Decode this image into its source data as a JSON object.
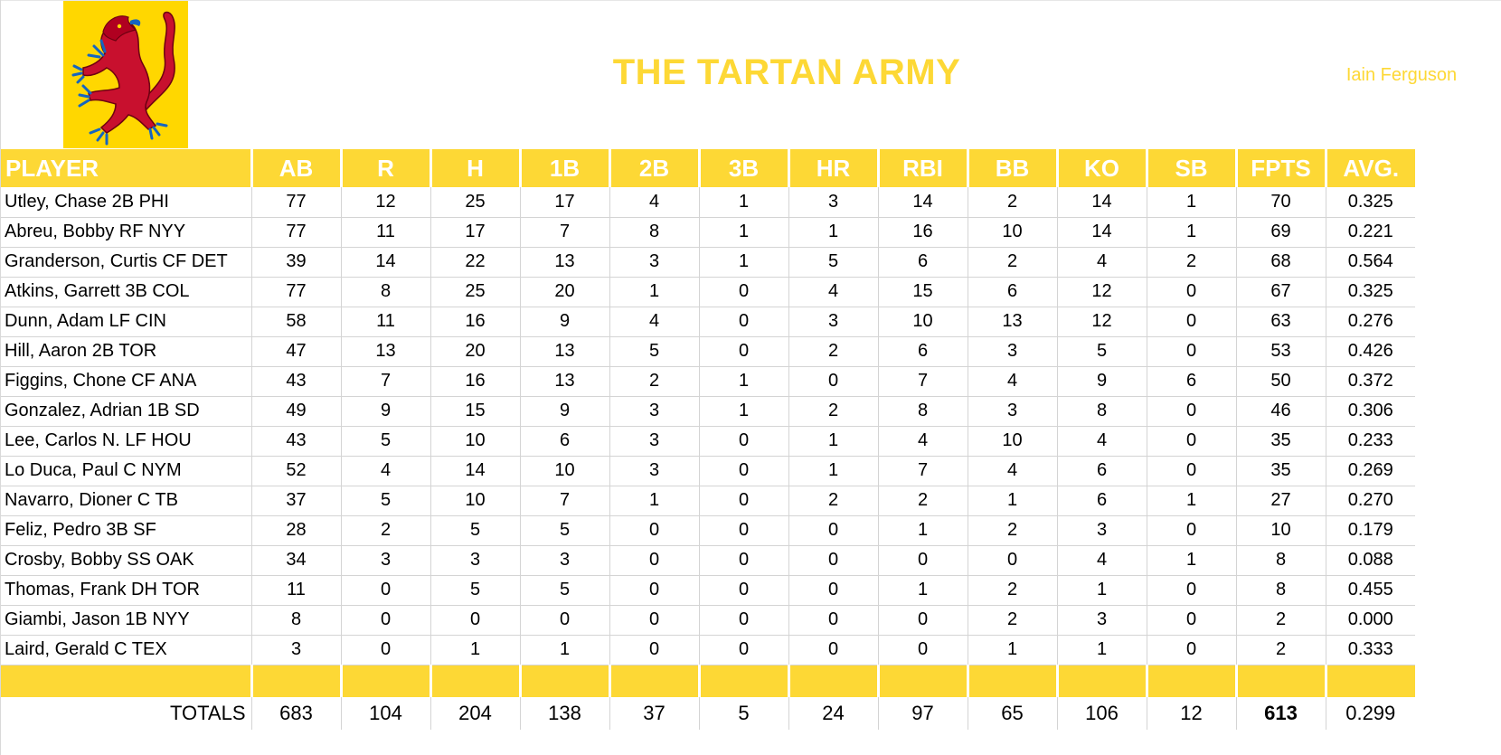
{
  "header": {
    "title": "THE TARTAN ARMY",
    "owner": "Iain Ferguson",
    "logo_icon": "lion-rampant-icon"
  },
  "colors": {
    "accent": "#fdd835",
    "lion": "#c8102e",
    "lion_claws": "#1565c0"
  },
  "table": {
    "columns": [
      "PLAYER",
      "AB",
      "R",
      "H",
      "1B",
      "2B",
      "3B",
      "HR",
      "RBI",
      "BB",
      "KO",
      "SB",
      "FPTS",
      "AVG."
    ],
    "rows": [
      [
        "Utley, Chase 2B PHI",
        "77",
        "12",
        "25",
        "17",
        "4",
        "1",
        "3",
        "14",
        "2",
        "14",
        "1",
        "70",
        "0.325"
      ],
      [
        "Abreu, Bobby RF NYY",
        "77",
        "11",
        "17",
        "7",
        "8",
        "1",
        "1",
        "16",
        "10",
        "14",
        "1",
        "69",
        "0.221"
      ],
      [
        "Granderson, Curtis CF DET",
        "39",
        "14",
        "22",
        "13",
        "3",
        "1",
        "5",
        "6",
        "2",
        "4",
        "2",
        "68",
        "0.564"
      ],
      [
        "Atkins, Garrett 3B COL",
        "77",
        "8",
        "25",
        "20",
        "1",
        "0",
        "4",
        "15",
        "6",
        "12",
        "0",
        "67",
        "0.325"
      ],
      [
        "Dunn, Adam LF CIN",
        "58",
        "11",
        "16",
        "9",
        "4",
        "0",
        "3",
        "10",
        "13",
        "12",
        "0",
        "63",
        "0.276"
      ],
      [
        "Hill, Aaron 2B TOR",
        "47",
        "13",
        "20",
        "13",
        "5",
        "0",
        "2",
        "6",
        "3",
        "5",
        "0",
        "53",
        "0.426"
      ],
      [
        "Figgins, Chone CF ANA",
        "43",
        "7",
        "16",
        "13",
        "2",
        "1",
        "0",
        "7",
        "4",
        "9",
        "6",
        "50",
        "0.372"
      ],
      [
        "Gonzalez, Adrian 1B SD",
        "49",
        "9",
        "15",
        "9",
        "3",
        "1",
        "2",
        "8",
        "3",
        "8",
        "0",
        "46",
        "0.306"
      ],
      [
        "Lee, Carlos N. LF HOU",
        "43",
        "5",
        "10",
        "6",
        "3",
        "0",
        "1",
        "4",
        "10",
        "4",
        "0",
        "35",
        "0.233"
      ],
      [
        "Lo Duca, Paul C NYM",
        "52",
        "4",
        "14",
        "10",
        "3",
        "0",
        "1",
        "7",
        "4",
        "6",
        "0",
        "35",
        "0.269"
      ],
      [
        "Navarro, Dioner C TB",
        "37",
        "5",
        "10",
        "7",
        "1",
        "0",
        "2",
        "2",
        "1",
        "6",
        "1",
        "27",
        "0.270"
      ],
      [
        "Feliz, Pedro 3B SF",
        "28",
        "2",
        "5",
        "5",
        "0",
        "0",
        "0",
        "1",
        "2",
        "3",
        "0",
        "10",
        "0.179"
      ],
      [
        "Crosby, Bobby SS OAK",
        "34",
        "3",
        "3",
        "3",
        "0",
        "0",
        "0",
        "0",
        "0",
        "4",
        "1",
        "8",
        "0.088"
      ],
      [
        "Thomas, Frank DH TOR",
        "11",
        "0",
        "5",
        "5",
        "0",
        "0",
        "0",
        "1",
        "2",
        "1",
        "0",
        "8",
        "0.455"
      ],
      [
        "Giambi, Jason 1B NYY",
        "8",
        "0",
        "0",
        "0",
        "0",
        "0",
        "0",
        "0",
        "2",
        "3",
        "0",
        "2",
        "0.000"
      ],
      [
        "Laird, Gerald C TEX",
        "3",
        "0",
        "1",
        "1",
        "0",
        "0",
        "0",
        "0",
        "1",
        "1",
        "0",
        "2",
        "0.333"
      ]
    ],
    "totals": [
      "TOTALS",
      "683",
      "104",
      "204",
      "138",
      "37",
      "5",
      "24",
      "97",
      "65",
      "106",
      "12",
      "613",
      "0.299"
    ]
  }
}
